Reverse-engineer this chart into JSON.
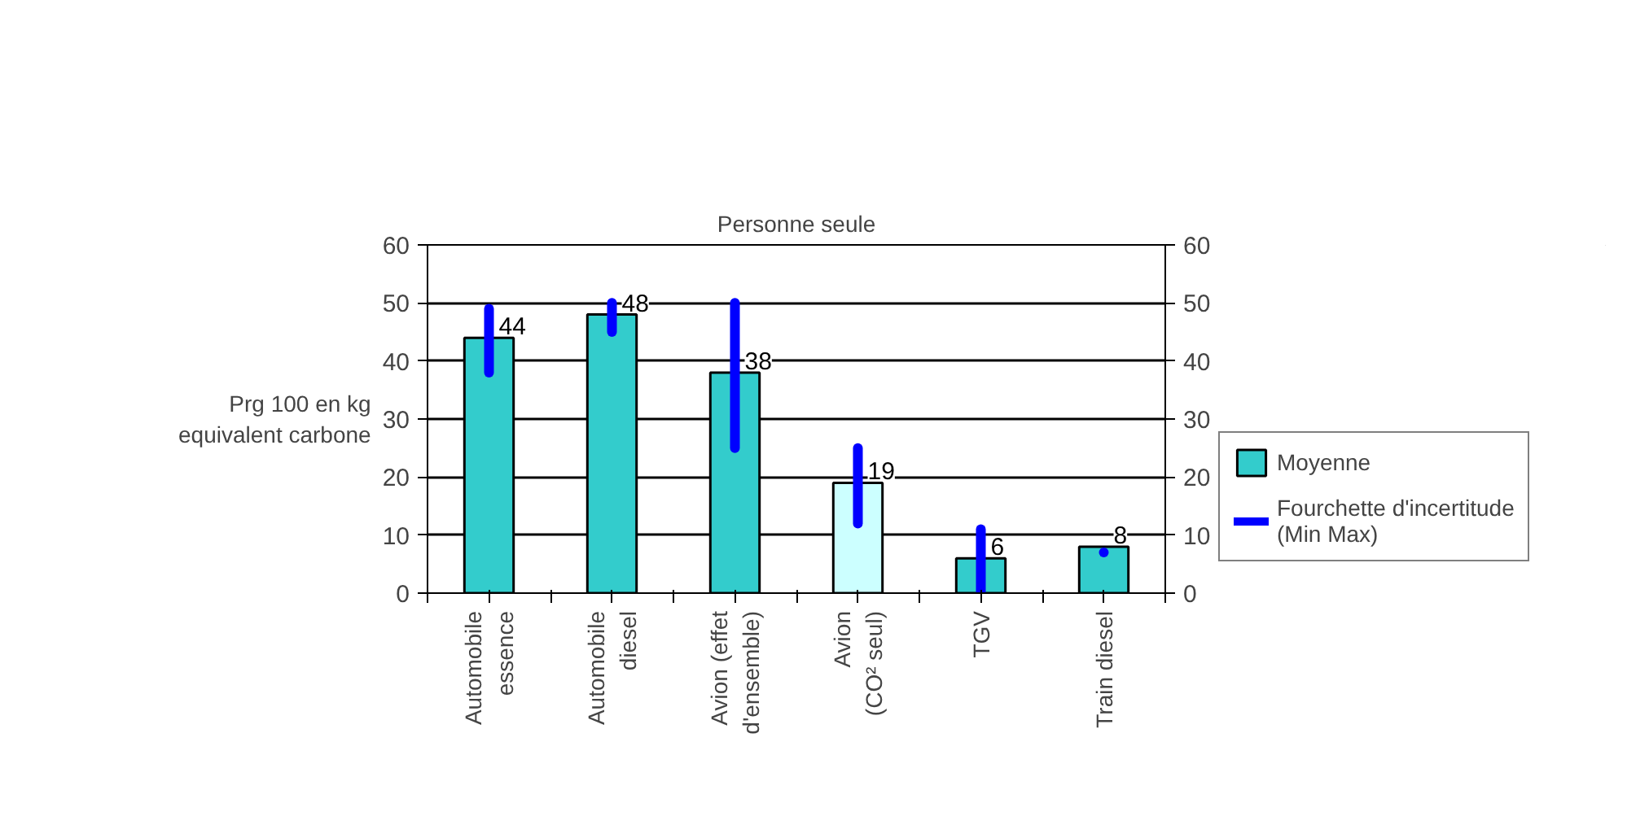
{
  "chart_data": {
    "type": "bar",
    "title": "Personne seule",
    "ylabel": "Prg 100 en kg\nequivalent carbone",
    "categories": [
      "Automobile\nessence",
      "Automobile\ndiesel",
      "Avion (effet\nd'ensemble)",
      "Avion\n(CO² seul)",
      "TGV",
      "Train diesel"
    ],
    "series": [
      {
        "name": "Moyenne",
        "color": "#33cccc",
        "colors": [
          "#33cccc",
          "#33cccc",
          "#33cccc",
          "#ccffff",
          "#33cccc",
          "#33cccc"
        ],
        "values": [
          44,
          48,
          38,
          19,
          6,
          8
        ],
        "errors": [
          [
            38,
            49
          ],
          [
            45,
            50
          ],
          [
            25,
            50
          ],
          [
            12,
            25
          ],
          [
            0,
            11
          ],
          [
            7,
            7
          ]
        ]
      }
    ],
    "annotations": [
      "Fourchette d'incertitude\n(Min Max)"
    ],
    "ylim": [
      0,
      60
    ],
    "yticks": [
      0,
      10,
      20,
      30,
      40,
      50,
      60
    ],
    "y2lim": [
      0,
      60
    ],
    "y2ticks": [
      0,
      10,
      20,
      30,
      40,
      50,
      60
    ],
    "grid": "y",
    "legend": "bottom right",
    "data_labels": true
  }
}
